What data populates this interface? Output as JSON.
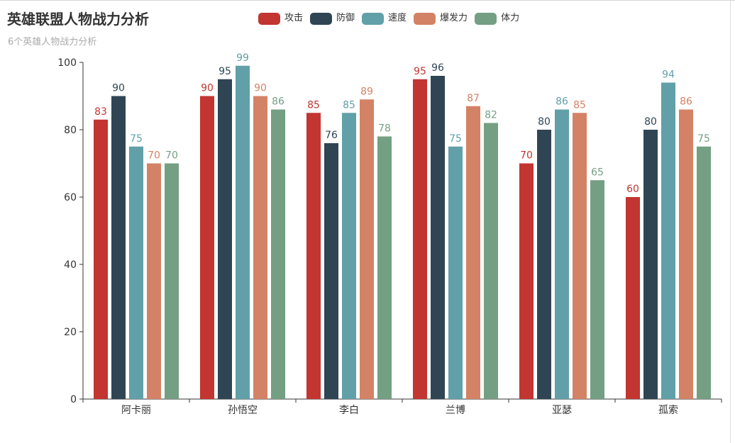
{
  "window": {
    "title": "英雄联盟人物战力分析",
    "subtitle": "6个英雄人物战力分析"
  },
  "chart_data": {
    "type": "bar",
    "title": "英雄联盟人物战力分析",
    "subtitle": "6个英雄人物战力分析",
    "categories": [
      "阿卡丽",
      "孙悟空",
      "李白",
      "兰博",
      "亚瑟",
      "孤索"
    ],
    "series": [
      {
        "name": "攻击",
        "color": "#c23531",
        "values": [
          83,
          90,
          85,
          95,
          70,
          60
        ]
      },
      {
        "name": "防御",
        "color": "#2f4554",
        "values": [
          90,
          95,
          76,
          96,
          80,
          80
        ]
      },
      {
        "name": "速度",
        "color": "#61a0a8",
        "values": [
          75,
          99,
          85,
          75,
          86,
          94
        ]
      },
      {
        "name": "爆发力",
        "color": "#d48265",
        "values": [
          70,
          90,
          89,
          87,
          85,
          86
        ]
      },
      {
        "name": "体力",
        "color": "#749f83",
        "values": [
          70,
          86,
          78,
          82,
          65,
          75
        ]
      }
    ],
    "yticks": [
      0,
      20,
      40,
      60,
      80,
      100
    ],
    "ylim": [
      0,
      100
    ],
    "xlabel": "",
    "ylabel": "",
    "legend_position": "top-center",
    "grid": false
  }
}
